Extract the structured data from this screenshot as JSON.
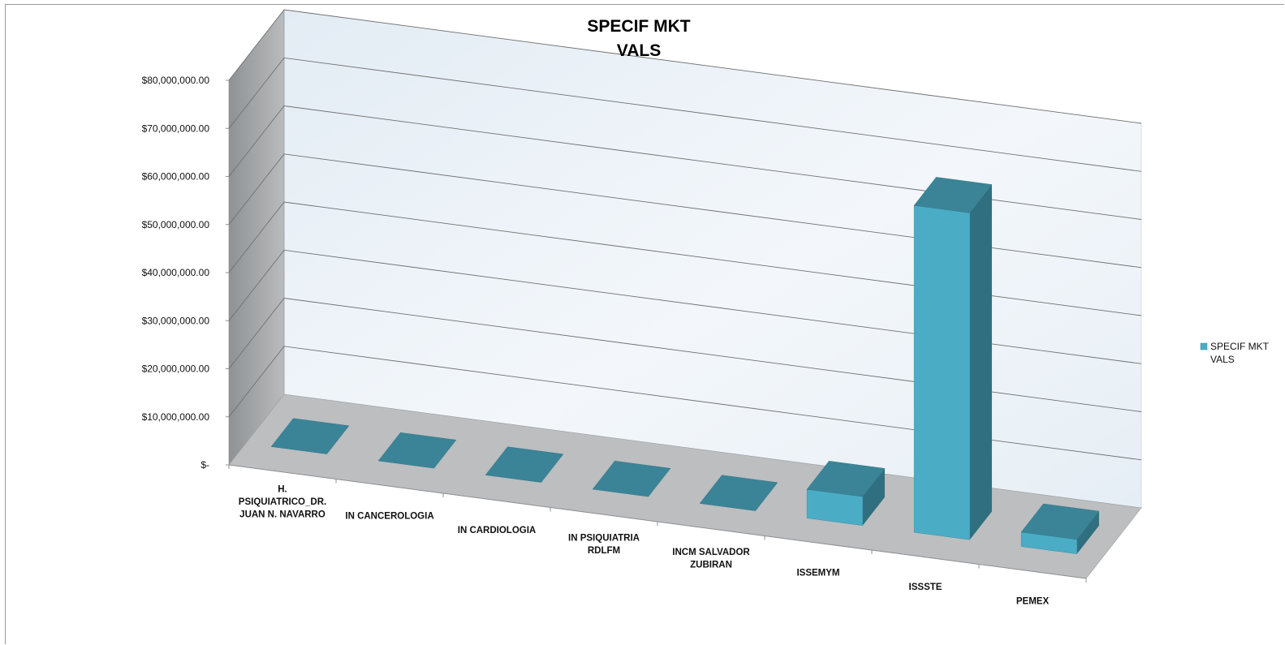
{
  "chart_data": {
    "type": "bar",
    "title_lines": [
      "SPECIF MKT",
      "VALS"
    ],
    "categories": [
      [
        "H.",
        "PSIQUIATRICO_DR.",
        "JUAN N. NAVARRO"
      ],
      [
        "IN CANCEROLOGIA"
      ],
      [
        "IN CARDIOLOGIA"
      ],
      [
        "IN PSIQUIATRIA",
        "RDLFM"
      ],
      [
        "INCM SALVADOR",
        "ZUBIRAN"
      ],
      [
        "ISSEMYM"
      ],
      [
        "ISSSTE"
      ],
      [
        "PEMEX"
      ]
    ],
    "series": [
      {
        "name_lines": [
          "SPECIF MKT",
          "VALS"
        ],
        "values": [
          0,
          0,
          0,
          0,
          0,
          6000000,
          68000000,
          3000000
        ]
      }
    ],
    "ylim": [
      0,
      80000000
    ],
    "y_ticks": [
      "$-",
      "$10,000,000.00",
      "$20,000,000.00",
      "$30,000,000.00",
      "$40,000,000.00",
      "$50,000,000.00",
      "$60,000,000.00",
      "$70,000,000.00",
      "$80,000,000.00"
    ],
    "grid": true,
    "legend_position": "right",
    "colors": {
      "bar_front": "#4bacc6",
      "bar_top": "#3b8497",
      "bar_side": "#2f6f80",
      "back_wall": "#eaf1f7",
      "side_wall": "#a6a8aa",
      "floor": "#bcbec0"
    }
  }
}
